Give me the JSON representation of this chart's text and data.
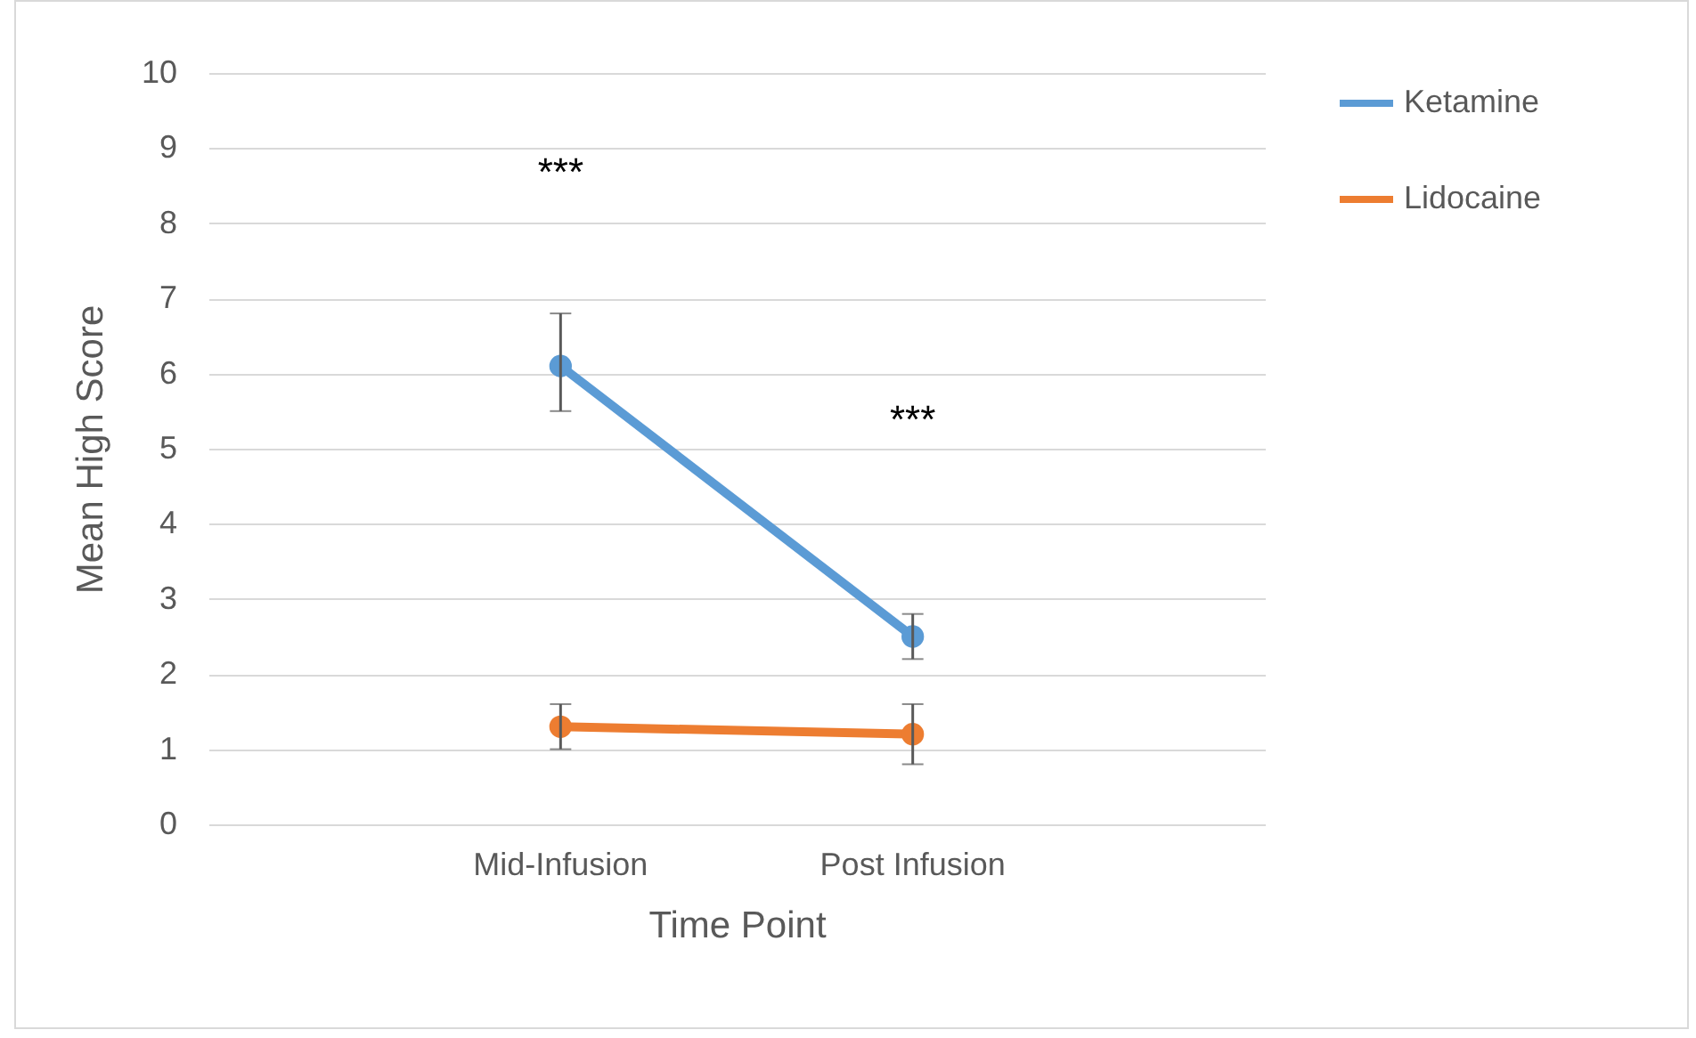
{
  "chart_data": {
    "type": "line",
    "xlabel": "Time Point",
    "ylabel": "Mean High Score",
    "categories": [
      "Mid-Infusion",
      "Post Infusion"
    ],
    "series": [
      {
        "name": "Ketamine",
        "color": "#5b9bd5",
        "values": [
          6.1,
          2.5
        ],
        "errors": [
          [
            5.5,
            6.8
          ],
          [
            2.2,
            2.8
          ]
        ]
      },
      {
        "name": "Lidocaine",
        "color": "#ed7d31",
        "values": [
          1.3,
          1.2
        ],
        "errors": [
          [
            1.0,
            1.6
          ],
          [
            0.8,
            1.6
          ]
        ]
      }
    ],
    "ylim": [
      0,
      10
    ],
    "yticks": [
      0,
      1,
      2,
      3,
      4,
      5,
      6,
      7,
      8,
      9,
      10
    ],
    "grid": "y",
    "legend": "right",
    "marker": "circle",
    "line_style": "solid",
    "annotations": [
      "***",
      "***"
    ]
  }
}
